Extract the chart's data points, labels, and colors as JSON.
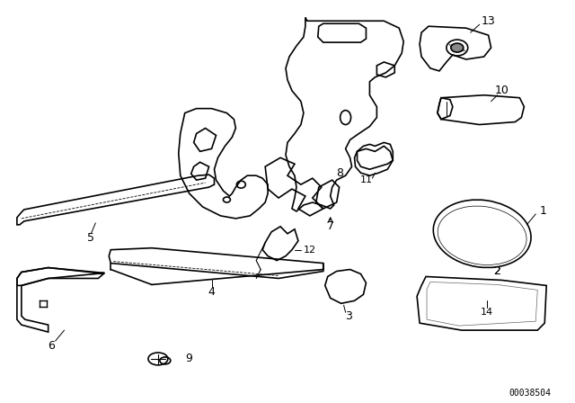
{
  "background_color": "#ffffff",
  "line_color": "#000000",
  "label_color": "#000000",
  "diagram_id": "00038504",
  "figsize": [
    6.4,
    4.48
  ],
  "dpi": 100
}
